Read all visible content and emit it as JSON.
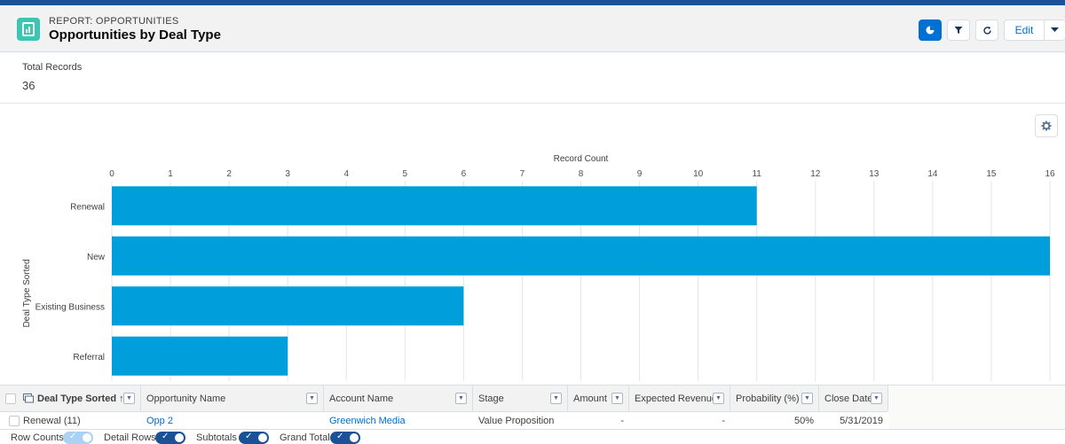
{
  "header": {
    "eyebrow": "REPORT: OPPORTUNITIES",
    "title": "Opportunities by Deal Type",
    "edit_label": "Edit",
    "icons": [
      "report-icon",
      "chart-icon",
      "filter-icon",
      "refresh-icon",
      "chevron-down-icon"
    ]
  },
  "summary": {
    "total_label": "Total Records",
    "total_value": "36"
  },
  "chart_data": {
    "type": "bar",
    "orientation": "horizontal",
    "categories": [
      "Renewal",
      "New",
      "Existing Business",
      "Referral"
    ],
    "values": [
      11,
      16,
      6,
      3
    ],
    "xlabel": "Record Count",
    "ylabel": "Deal Type Sorted",
    "xlim": [
      0,
      16
    ],
    "xticks": [
      0,
      1,
      2,
      3,
      4,
      5,
      6,
      7,
      8,
      9,
      10,
      11,
      12,
      13,
      14,
      15,
      16
    ],
    "grid": true,
    "bar_color": "#009fdb",
    "axis_position": "top"
  },
  "table": {
    "columns": [
      "Deal Type Sorted ↑",
      "Opportunity Name",
      "Account Name",
      "Stage",
      "Amount",
      "Expected Revenue",
      "Probability (%)",
      "Close Date"
    ],
    "rows": [
      [
        "Renewal (11)",
        "Opp 2",
        "Greenwich Media",
        "Value Proposition",
        "-",
        "-",
        "50%",
        "5/31/2019"
      ]
    ]
  },
  "footer": {
    "toggles": [
      {
        "label": "Row Counts",
        "on": false
      },
      {
        "label": "Detail Rows",
        "on": true
      },
      {
        "label": "Subtotals",
        "on": true
      },
      {
        "label": "Grand Total",
        "on": true
      }
    ]
  }
}
